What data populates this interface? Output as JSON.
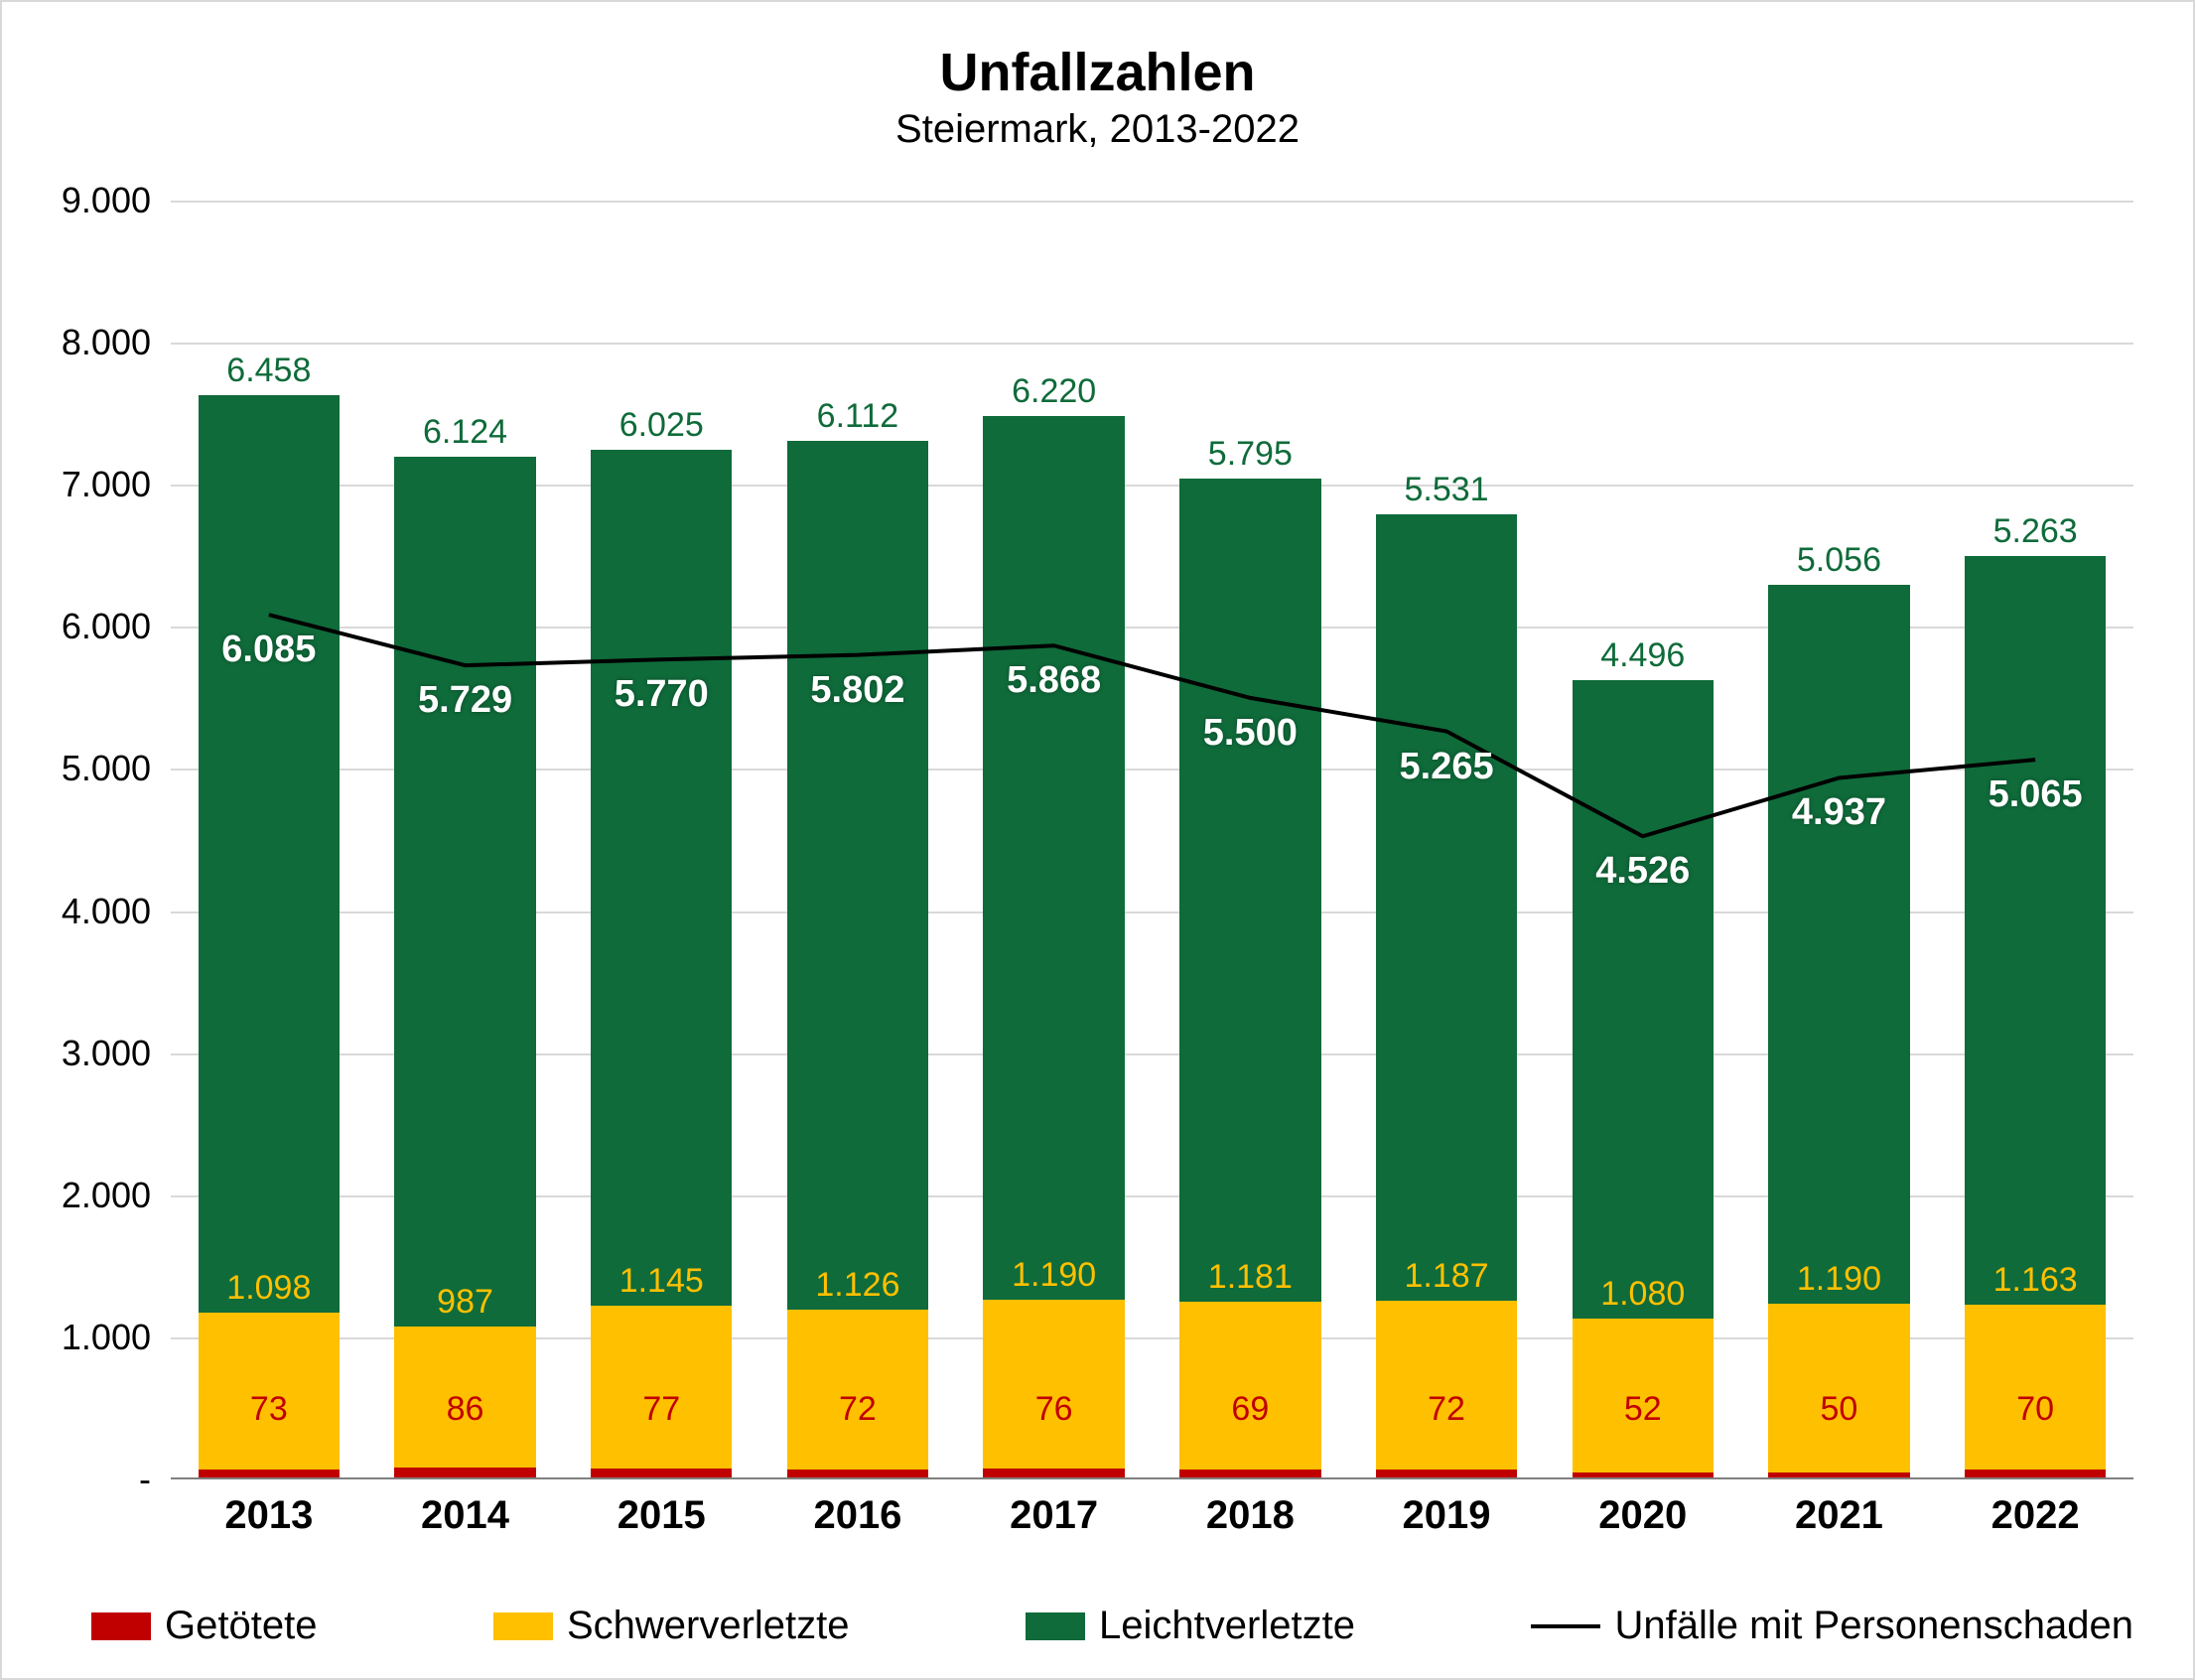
{
  "chart": {
    "type": "stacked-bar-with-line",
    "title": "Unfallzahlen",
    "subtitle": "Steiermark, 2013-2022",
    "title_fontsize": 54,
    "subtitle_fontsize": 40,
    "background_color": "#ffffff",
    "border_color": "#d9d9d9",
    "grid_color": "#d9d9d9",
    "axis_font_color": "#000000",
    "y_axis": {
      "min": 0,
      "max": 9000,
      "tick_step": 1000,
      "tick_labels": [
        "-",
        "1.000",
        "2.000",
        "3.000",
        "4.000",
        "5.000",
        "6.000",
        "7.000",
        "8.000",
        "9.000"
      ],
      "label_fontsize": 36
    },
    "x_axis": {
      "categories": [
        "2013",
        "2014",
        "2015",
        "2016",
        "2017",
        "2018",
        "2019",
        "2020",
        "2021",
        "2022"
      ],
      "label_fontsize": 40,
      "label_fontweight": 700
    },
    "bar_width_ratio": 0.72,
    "series": {
      "getoetete": {
        "label": "Getötete",
        "color": "#c00000",
        "label_color": "#c00000",
        "label_fontsize": 34,
        "values": [
          73,
          86,
          77,
          72,
          76,
          69,
          72,
          52,
          50,
          70
        ],
        "display": [
          "73",
          "86",
          "77",
          "72",
          "76",
          "69",
          "72",
          "52",
          "50",
          "70"
        ]
      },
      "schwerverletzte": {
        "label": "Schwerverletzte",
        "color": "#ffc000",
        "label_color": "#ffc000",
        "label_fontsize": 34,
        "values": [
          1098,
          987,
          1145,
          1126,
          1190,
          1181,
          1187,
          1080,
          1190,
          1163
        ],
        "display": [
          "1.098",
          "987",
          "1.145",
          "1.126",
          "1.190",
          "1.181",
          "1.187",
          "1.080",
          "1.190",
          "1.163"
        ]
      },
      "leichtverletzte": {
        "label": "Leichtverletzte",
        "color": "#0f6b3a",
        "label_color": "#0f6b3a",
        "label_fontsize": 34,
        "values": [
          6458,
          6124,
          6025,
          6112,
          6220,
          5795,
          5531,
          4496,
          5056,
          5263
        ],
        "display": [
          "6.458",
          "6.124",
          "6.025",
          "6.112",
          "6.220",
          "5.795",
          "5.531",
          "4.496",
          "5.056",
          "5.263"
        ]
      }
    },
    "line": {
      "label": "Unfälle mit Personenschaden",
      "color": "#000000",
      "width": 4,
      "label_color": "#ffffff",
      "label_fontsize": 38,
      "label_fontweight": 700,
      "values": [
        6085,
        5729,
        5770,
        5802,
        5868,
        5500,
        5265,
        4526,
        4937,
        5065
      ],
      "display": [
        "6.085",
        "5.729",
        "5.770",
        "5.802",
        "5.868",
        "5.500",
        "5.265",
        "4.526",
        "4.937",
        "5.065"
      ]
    },
    "legend": {
      "fontsize": 40,
      "items": [
        {
          "key": "getoetete",
          "label": "Getötete",
          "swatch": "#c00000",
          "type": "box"
        },
        {
          "key": "schwerverletzte",
          "label": "Schwerverletzte",
          "swatch": "#ffc000",
          "type": "box"
        },
        {
          "key": "leichtverletzte",
          "label": "Leichtverletzte",
          "swatch": "#0f6b3a",
          "type": "box"
        },
        {
          "key": "line",
          "label": "Unfälle mit Personenschaden",
          "swatch": "#000000",
          "type": "line"
        }
      ]
    }
  }
}
